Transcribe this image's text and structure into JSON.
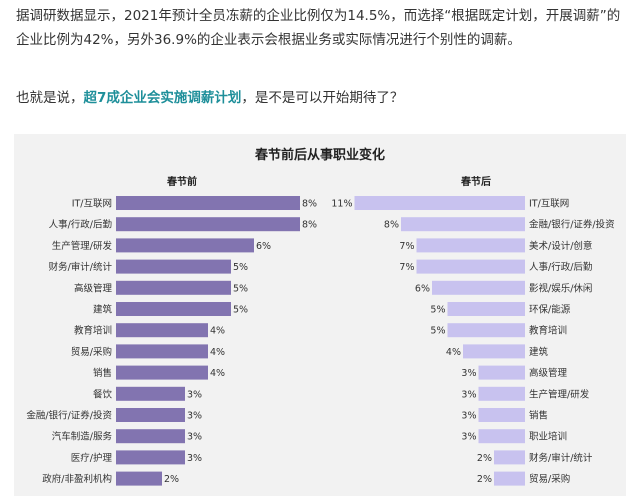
{
  "article": {
    "p1": "据调研数据显示，2021年预计全员冻薪的企业比例仅为14.5%，而选择“根据既定计划，开展调薪”的企业比例为42%，另外36.9%的企业表示会根据业务或实际情况进行个别性的调薪。",
    "p2_before": "也就是说，",
    "p2_highlight": "超7成企业会实施调薪计划",
    "p2_after": "，是不是可以开始期待了？"
  },
  "colors": {
    "before_bar": "#8274b0",
    "after_bar": "#c8c2ef",
    "highlight_text": "#1e8f9a",
    "panel_bg": "#f2f2f2"
  },
  "chart_data": {
    "type": "bar",
    "title": "春节前后从事职业变化",
    "orientation": "horizontal",
    "value_unit": "%",
    "charts": [
      {
        "name": "春节前",
        "categories": [
          "IT/互联网",
          "人事/行政/后勤",
          "生产管理/研发",
          "财务/审计/统计",
          "高级管理",
          "建筑",
          "教育培训",
          "贸易/采购",
          "销售",
          "餐饮",
          "金融/银行/证券/投资",
          "汽车制造/服务",
          "医疗/护理",
          "政府/非盈利机构"
        ],
        "values": [
          8,
          8,
          6,
          5,
          5,
          5,
          4,
          4,
          4,
          3,
          3,
          3,
          3,
          2
        ],
        "labels": [
          "8%",
          "8%",
          "6%",
          "5%",
          "5%",
          "5%",
          "4%",
          "4%",
          "4%",
          "3%",
          "3%",
          "3%",
          "3%",
          "2%"
        ]
      },
      {
        "name": "春节后",
        "categories": [
          "IT/互联网",
          "金融/银行/证券/投资",
          "美术/设计/创意",
          "人事/行政/后勤",
          "影视/娱乐/休闲",
          "环保/能源",
          "教育培训",
          "建筑",
          "高级管理",
          "生产管理/研发",
          "销售",
          "职业培训",
          "财务/审计/统计",
          "贸易/采购"
        ],
        "values": [
          11,
          8,
          7,
          7,
          6,
          5,
          5,
          4,
          3,
          3,
          3,
          3,
          2,
          2
        ],
        "labels": [
          "11%",
          "8%",
          "7%",
          "7%",
          "6%",
          "5%",
          "5%",
          "4%",
          "3%",
          "3%",
          "3%",
          "3%",
          "2%",
          "2%"
        ]
      }
    ]
  }
}
